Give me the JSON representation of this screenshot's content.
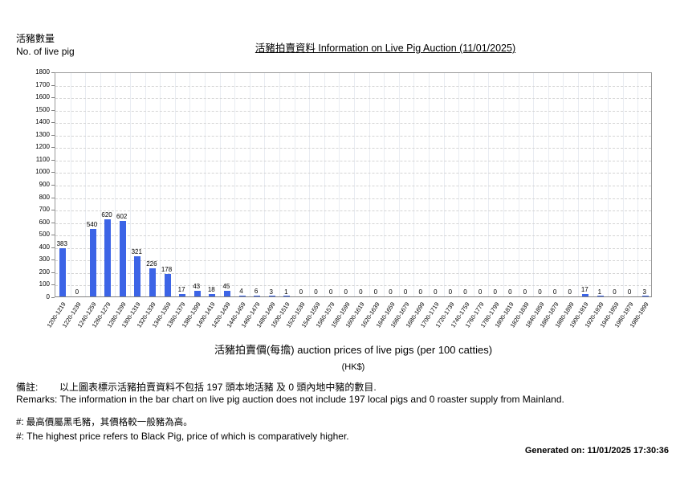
{
  "header": {
    "y_unit_label_zh": "活豬數量",
    "y_unit_label_en": "No. of live pig",
    "title": "活豬拍賣資料 Information on Live Pig Auction (11/01/2025)"
  },
  "chart_data": {
    "type": "bar",
    "title": "活豬拍賣資料 Information on Live Pig Auction (11/01/2025)",
    "xlabel": "活豬拍賣價(每擔) auction prices of live pigs (per 100 catties)",
    "xlabel_unit": "(HK$)",
    "ylabel_zh": "活豬數量",
    "ylabel_en": "No. of live pig",
    "ylim": [
      0,
      1800
    ],
    "ytick_step": 100,
    "grid": true,
    "legend_position": "none",
    "bar_color": "#3c64e6",
    "categories": [
      "1200-1219",
      "1220-1239",
      "1240-1259",
      "1260-1279",
      "1280-1299",
      "1300-1319",
      "1320-1339",
      "1340-1359",
      "1360-1379",
      "1380-1399",
      "1400-1419",
      "1420-1439",
      "1440-1459",
      "1460-1479",
      "1480-1499",
      "1500-1519",
      "1520-1539",
      "1540-1559",
      "1560-1579",
      "1580-1599",
      "1600-1619",
      "1620-1639",
      "1640-1659",
      "1660-1679",
      "1680-1699",
      "1700-1719",
      "1720-1739",
      "1740-1759",
      "1760-1779",
      "1780-1799",
      "1800-1819",
      "1820-1839",
      "1840-1859",
      "1860-1879",
      "1880-1899",
      "1900-1919",
      "1920-1939",
      "1940-1959",
      "1960-1979",
      "1980-1999"
    ],
    "values": [
      383,
      0,
      540,
      620,
      602,
      321,
      226,
      178,
      17,
      43,
      18,
      45,
      4,
      6,
      3,
      1,
      0,
      0,
      0,
      0,
      0,
      0,
      0,
      0,
      0,
      0,
      0,
      0,
      0,
      0,
      0,
      0,
      0,
      0,
      0,
      17,
      1,
      0,
      0,
      3
    ]
  },
  "footer": {
    "remark_zh": "備註:        以上圖表標示活豬拍賣資料不包括 197 頭本地活豬 及 0 頭內地中豬的數目.",
    "remark_en": "Remarks: The information in the bar chart on live pig auction does not include 197 local pigs and 0 roaster supply from Mainland.",
    "note_zh": "#: 最高價屬黑毛豬，其價格較一般豬為高。",
    "note_en": "#: The highest price refers to Black Pig, price of which is comparatively higher.",
    "generated_on": "Generated on: 11/01/2025 17:30:36"
  }
}
